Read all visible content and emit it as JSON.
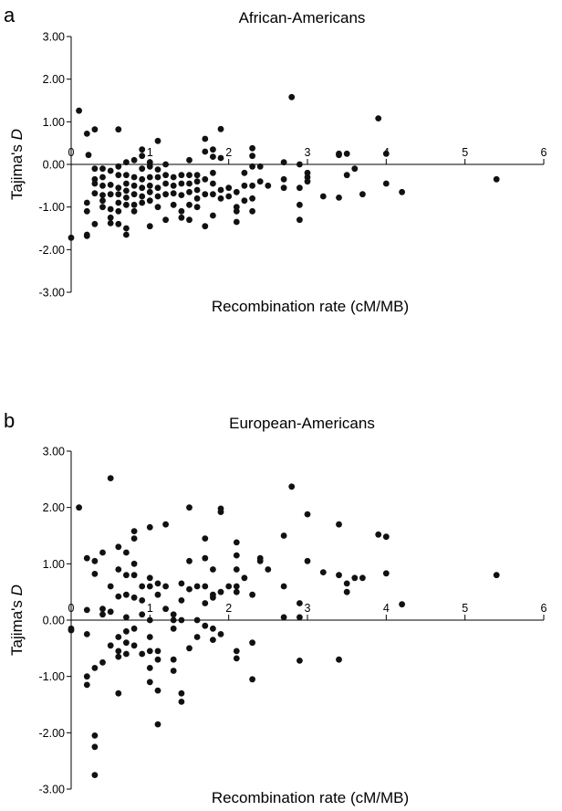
{
  "chart_data": [
    {
      "type": "scatter",
      "panel": "a",
      "title": "African-Americans",
      "xlabel": "Recombination rate (cM/MB)",
      "ylabel_prefix": "Tajima's ",
      "ylabel_italic": "D",
      "xlim": [
        0,
        6
      ],
      "ylim": [
        -3,
        3
      ],
      "x_ticks": [
        "0",
        "1",
        "2",
        "3",
        "4",
        "5",
        "6"
      ],
      "y_ticks": [
        "3.00",
        "2.00",
        "1.00",
        "0.00",
        "-1.00",
        "-2.00",
        "-3.00"
      ],
      "grid": false,
      "points": [
        [
          0.0,
          -1.72
        ],
        [
          0.1,
          1.26
        ],
        [
          0.2,
          0.72
        ],
        [
          0.22,
          0.22
        ],
        [
          0.2,
          -0.9
        ],
        [
          0.2,
          -1.1
        ],
        [
          0.2,
          -1.65
        ],
        [
          0.2,
          -1.68
        ],
        [
          0.3,
          0.82
        ],
        [
          0.3,
          -0.1
        ],
        [
          0.3,
          -0.35
        ],
        [
          0.3,
          -0.45
        ],
        [
          0.3,
          -0.68
        ],
        [
          0.3,
          -1.4
        ],
        [
          0.4,
          -0.1
        ],
        [
          0.4,
          -0.3
        ],
        [
          0.4,
          -0.5
        ],
        [
          0.4,
          -0.72
        ],
        [
          0.4,
          -0.85
        ],
        [
          0.4,
          -1.0
        ],
        [
          0.5,
          -0.15
        ],
        [
          0.5,
          -0.48
        ],
        [
          0.5,
          -0.7
        ],
        [
          0.5,
          -1.05
        ],
        [
          0.5,
          -1.25
        ],
        [
          0.5,
          -1.38
        ],
        [
          0.6,
          0.82
        ],
        [
          0.6,
          -0.05
        ],
        [
          0.6,
          -0.25
        ],
        [
          0.6,
          -0.55
        ],
        [
          0.6,
          -0.7
        ],
        [
          0.6,
          -0.9
        ],
        [
          0.6,
          -1.1
        ],
        [
          0.6,
          -1.4
        ],
        [
          0.7,
          0.05
        ],
        [
          0.7,
          -0.25
        ],
        [
          0.7,
          -0.45
        ],
        [
          0.7,
          -0.62
        ],
        [
          0.7,
          -0.78
        ],
        [
          0.7,
          -0.95
        ],
        [
          0.7,
          -1.5
        ],
        [
          0.7,
          -1.65
        ],
        [
          0.8,
          0.1
        ],
        [
          0.8,
          -0.3
        ],
        [
          0.8,
          -0.5
        ],
        [
          0.8,
          -0.7
        ],
        [
          0.8,
          -0.95
        ],
        [
          0.8,
          -1.1
        ],
        [
          0.9,
          0.35
        ],
        [
          0.9,
          0.2
        ],
        [
          0.9,
          -0.1
        ],
        [
          0.9,
          -0.35
        ],
        [
          0.9,
          -0.55
        ],
        [
          0.9,
          -0.75
        ],
        [
          0.9,
          -0.9
        ],
        [
          1.0,
          0.05
        ],
        [
          1.0,
          -0.05
        ],
        [
          1.0,
          -0.3
        ],
        [
          1.0,
          -0.5
        ],
        [
          1.0,
          -0.65
        ],
        [
          1.0,
          -0.85
        ],
        [
          1.0,
          -1.45
        ],
        [
          1.1,
          0.55
        ],
        [
          1.1,
          -0.12
        ],
        [
          1.1,
          -0.3
        ],
        [
          1.1,
          -0.55
        ],
        [
          1.1,
          -0.75
        ],
        [
          1.1,
          -1.0
        ],
        [
          1.2,
          0.0
        ],
        [
          1.2,
          -0.25
        ],
        [
          1.2,
          -0.45
        ],
        [
          1.2,
          -0.7
        ],
        [
          1.2,
          -1.3
        ],
        [
          1.3,
          -0.3
        ],
        [
          1.3,
          -0.5
        ],
        [
          1.3,
          -0.68
        ],
        [
          1.3,
          -0.95
        ],
        [
          1.4,
          -0.25
        ],
        [
          1.4,
          -0.45
        ],
        [
          1.4,
          -0.72
        ],
        [
          1.4,
          -1.1
        ],
        [
          1.4,
          -1.25
        ],
        [
          1.5,
          0.1
        ],
        [
          1.5,
          -0.25
        ],
        [
          1.5,
          -0.45
        ],
        [
          1.5,
          -0.65
        ],
        [
          1.5,
          -0.95
        ],
        [
          1.5,
          -1.3
        ],
        [
          1.6,
          -0.25
        ],
        [
          1.6,
          -0.4
        ],
        [
          1.6,
          -0.6
        ],
        [
          1.6,
          -0.8
        ],
        [
          1.6,
          -1.0
        ],
        [
          1.7,
          0.6
        ],
        [
          1.7,
          0.3
        ],
        [
          1.7,
          -0.35
        ],
        [
          1.7,
          -0.7
        ],
        [
          1.7,
          -1.45
        ],
        [
          1.8,
          0.35
        ],
        [
          1.8,
          0.18
        ],
        [
          1.8,
          -0.2
        ],
        [
          1.8,
          -0.45
        ],
        [
          1.8,
          -0.7
        ],
        [
          1.8,
          -1.2
        ],
        [
          1.9,
          0.83
        ],
        [
          1.9,
          0.15
        ],
        [
          1.9,
          -0.6
        ],
        [
          1.9,
          -0.8
        ],
        [
          2.0,
          -0.55
        ],
        [
          2.0,
          -0.75
        ],
        [
          2.1,
          -0.65
        ],
        [
          2.1,
          -1.0
        ],
        [
          2.1,
          -1.1
        ],
        [
          2.1,
          -1.35
        ],
        [
          2.2,
          -0.2
        ],
        [
          2.2,
          -0.5
        ],
        [
          2.2,
          -0.85
        ],
        [
          2.3,
          0.38
        ],
        [
          2.3,
          0.2
        ],
        [
          2.3,
          -0.05
        ],
        [
          2.3,
          -0.5
        ],
        [
          2.3,
          -0.8
        ],
        [
          2.3,
          -1.1
        ],
        [
          2.4,
          -0.05
        ],
        [
          2.4,
          -0.4
        ],
        [
          2.5,
          -0.5
        ],
        [
          2.7,
          0.05
        ],
        [
          2.7,
          -0.35
        ],
        [
          2.7,
          -0.55
        ],
        [
          2.8,
          1.58
        ],
        [
          2.9,
          0.0
        ],
        [
          2.9,
          -0.55
        ],
        [
          2.9,
          -0.95
        ],
        [
          2.9,
          -1.3
        ],
        [
          3.0,
          -0.2
        ],
        [
          3.0,
          -0.3
        ],
        [
          3.0,
          -0.4
        ],
        [
          3.2,
          -0.75
        ],
        [
          3.4,
          0.22
        ],
        [
          3.4,
          0.25
        ],
        [
          3.4,
          -0.78
        ],
        [
          3.5,
          0.25
        ],
        [
          3.5,
          -0.25
        ],
        [
          3.6,
          -0.1
        ],
        [
          3.7,
          -0.7
        ],
        [
          3.9,
          1.08
        ],
        [
          4.0,
          0.25
        ],
        [
          4.0,
          -0.45
        ],
        [
          4.2,
          -0.65
        ],
        [
          5.4,
          -0.35
        ]
      ]
    },
    {
      "type": "scatter",
      "panel": "b",
      "title": "European-Americans",
      "xlabel": "Recombination rate (cM/MB)",
      "ylabel_prefix": "Tajima's ",
      "ylabel_italic": "D",
      "xlim": [
        0,
        6
      ],
      "ylim": [
        -3,
        3
      ],
      "x_ticks": [
        "0",
        "1",
        "2",
        "3",
        "4",
        "5",
        "6"
      ],
      "y_ticks": [
        "3.00",
        "2.00",
        "1.00",
        "0.00",
        "-1.00",
        "-2.00",
        "-3.00"
      ],
      "grid": false,
      "points": [
        [
          0.0,
          -0.15
        ],
        [
          0.0,
          -0.18
        ],
        [
          0.1,
          2.0
        ],
        [
          0.2,
          1.1
        ],
        [
          0.2,
          0.18
        ],
        [
          0.2,
          -0.25
        ],
        [
          0.2,
          -1.0
        ],
        [
          0.2,
          -1.15
        ],
        [
          0.3,
          1.05
        ],
        [
          0.3,
          0.82
        ],
        [
          0.3,
          -0.85
        ],
        [
          0.3,
          -2.05
        ],
        [
          0.3,
          -2.25
        ],
        [
          0.3,
          -2.75
        ],
        [
          0.4,
          1.2
        ],
        [
          0.4,
          0.2
        ],
        [
          0.4,
          0.1
        ],
        [
          0.4,
          -0.75
        ],
        [
          0.5,
          2.52
        ],
        [
          0.5,
          0.6
        ],
        [
          0.5,
          0.15
        ],
        [
          0.5,
          -0.45
        ],
        [
          0.6,
          1.3
        ],
        [
          0.6,
          0.9
        ],
        [
          0.6,
          0.42
        ],
        [
          0.6,
          -0.3
        ],
        [
          0.6,
          -0.55
        ],
        [
          0.6,
          -0.65
        ],
        [
          0.6,
          -1.3
        ],
        [
          0.7,
          1.2
        ],
        [
          0.7,
          0.8
        ],
        [
          0.7,
          0.45
        ],
        [
          0.7,
          0.05
        ],
        [
          0.7,
          -0.2
        ],
        [
          0.7,
          -0.4
        ],
        [
          0.7,
          -0.6
        ],
        [
          0.8,
          1.58
        ],
        [
          0.8,
          1.45
        ],
        [
          0.8,
          1.0
        ],
        [
          0.8,
          0.8
        ],
        [
          0.8,
          0.4
        ],
        [
          0.8,
          -0.15
        ],
        [
          0.8,
          -0.45
        ],
        [
          0.9,
          0.6
        ],
        [
          0.9,
          0.35
        ],
        [
          0.9,
          0.1
        ],
        [
          0.9,
          -0.6
        ],
        [
          1.0,
          1.65
        ],
        [
          1.0,
          0.75
        ],
        [
          1.0,
          0.6
        ],
        [
          1.0,
          0.0
        ],
        [
          1.0,
          -0.3
        ],
        [
          1.0,
          -0.55
        ],
        [
          1.0,
          -0.85
        ],
        [
          1.0,
          -1.1
        ],
        [
          1.1,
          0.65
        ],
        [
          1.1,
          0.45
        ],
        [
          1.1,
          -0.55
        ],
        [
          1.1,
          -0.7
        ],
        [
          1.1,
          -1.25
        ],
        [
          1.1,
          -1.85
        ],
        [
          1.2,
          1.7
        ],
        [
          1.2,
          0.6
        ],
        [
          1.2,
          0.2
        ],
        [
          1.3,
          0.1
        ],
        [
          1.3,
          0.0
        ],
        [
          1.3,
          -0.15
        ],
        [
          1.3,
          -0.7
        ],
        [
          1.3,
          -0.9
        ],
        [
          1.4,
          0.65
        ],
        [
          1.4,
          0.35
        ],
        [
          1.4,
          0.0
        ],
        [
          1.4,
          -1.3
        ],
        [
          1.4,
          -1.45
        ],
        [
          1.5,
          2.0
        ],
        [
          1.5,
          1.05
        ],
        [
          1.5,
          0.55
        ],
        [
          1.5,
          -0.5
        ],
        [
          1.6,
          0.6
        ],
        [
          1.6,
          0.0
        ],
        [
          1.6,
          -0.3
        ],
        [
          1.7,
          1.45
        ],
        [
          1.7,
          1.1
        ],
        [
          1.7,
          0.6
        ],
        [
          1.7,
          0.3
        ],
        [
          1.7,
          -0.1
        ],
        [
          1.8,
          0.9
        ],
        [
          1.8,
          0.45
        ],
        [
          1.8,
          0.4
        ],
        [
          1.8,
          -0.15
        ],
        [
          1.8,
          -0.35
        ],
        [
          1.9,
          1.98
        ],
        [
          1.9,
          1.92
        ],
        [
          1.9,
          0.5
        ],
        [
          1.9,
          -0.25
        ],
        [
          2.0,
          0.6
        ],
        [
          2.1,
          1.38
        ],
        [
          2.1,
          1.15
        ],
        [
          2.1,
          0.9
        ],
        [
          2.1,
          0.6
        ],
        [
          2.1,
          0.5
        ],
        [
          2.1,
          -0.55
        ],
        [
          2.1,
          -0.68
        ],
        [
          2.2,
          0.75
        ],
        [
          2.3,
          0.45
        ],
        [
          2.3,
          -0.4
        ],
        [
          2.3,
          -1.05
        ],
        [
          2.4,
          1.1
        ],
        [
          2.4,
          1.05
        ],
        [
          2.5,
          0.9
        ],
        [
          2.7,
          1.5
        ],
        [
          2.7,
          0.6
        ],
        [
          2.7,
          0.05
        ],
        [
          2.8,
          2.37
        ],
        [
          2.9,
          0.3
        ],
        [
          2.9,
          0.05
        ],
        [
          2.9,
          -0.72
        ],
        [
          3.0,
          1.88
        ],
        [
          3.0,
          1.05
        ],
        [
          3.2,
          0.85
        ],
        [
          3.4,
          1.7
        ],
        [
          3.4,
          0.8
        ],
        [
          3.4,
          -0.7
        ],
        [
          3.5,
          0.65
        ],
        [
          3.5,
          0.5
        ],
        [
          3.6,
          0.75
        ],
        [
          3.7,
          0.75
        ],
        [
          3.9,
          1.52
        ],
        [
          4.0,
          1.48
        ],
        [
          4.0,
          0.83
        ],
        [
          4.2,
          0.28
        ],
        [
          5.4,
          0.8
        ]
      ]
    }
  ],
  "labels": {
    "panel_a": "a",
    "panel_b": "b"
  }
}
